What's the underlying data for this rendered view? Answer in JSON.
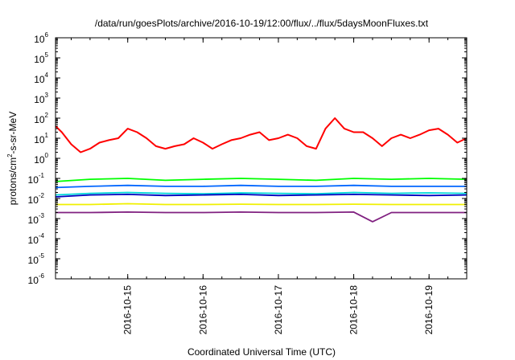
{
  "chart_data": {
    "type": "line",
    "title": "/data/run/goesPlots/archive/2016-10-19/12:00/flux/../flux/5daysMoonFluxes.txt",
    "xlabel": "Coordinated Universal Time (UTC)",
    "ylabel": {
      "base": "protons/cm",
      "sup": "2",
      "rest": "-s-sr-MeV"
    },
    "xlim": [
      "2016-10-14T01:00",
      "2016-10-19T12:00"
    ],
    "ylim": [
      1e-06,
      1000000.0
    ],
    "yscale": "log",
    "grid": false,
    "legend": "none",
    "x_ticks": [
      {
        "label": "2016-10-15",
        "value": "2016-10-15T00:00"
      },
      {
        "label": "2016-10-16",
        "value": "2016-10-16T00:00"
      },
      {
        "label": "2016-10-17",
        "value": "2016-10-17T00:00"
      },
      {
        "label": "2016-10-18",
        "value": "2016-10-18T00:00"
      },
      {
        "label": "2016-10-19",
        "value": "2016-10-19T00:00"
      }
    ],
    "y_ticks": [
      {
        "base": "10",
        "exp": "6",
        "value": 1000000.0
      },
      {
        "base": "10",
        "exp": "5",
        "value": 100000.0
      },
      {
        "base": "10",
        "exp": "4",
        "value": 10000.0
      },
      {
        "base": "10",
        "exp": "3",
        "value": 1000.0
      },
      {
        "base": "10",
        "exp": "2",
        "value": 100.0
      },
      {
        "base": "10",
        "exp": "1",
        "value": 10.0
      },
      {
        "base": "10",
        "exp": "0",
        "value": 1
      },
      {
        "base": "10",
        "exp": "-1",
        "value": 0.1
      },
      {
        "base": "10",
        "exp": "-2",
        "value": 0.01
      },
      {
        "base": "10",
        "exp": "-3",
        "value": 0.001
      },
      {
        "base": "10",
        "exp": "-4",
        "value": 0.0001
      },
      {
        "base": "10",
        "exp": "-5",
        "value": 1e-05
      },
      {
        "base": "10",
        "exp": "-6",
        "value": 1e-06
      }
    ],
    "series": [
      {
        "color": "#ff0000",
        "x": [
          "2016-10-14T01:00",
          "2016-10-14T03:00",
          "2016-10-14T06:00",
          "2016-10-14T09:00",
          "2016-10-14T12:00",
          "2016-10-14T15:00",
          "2016-10-14T18:00",
          "2016-10-14T21:00",
          "2016-10-15T00:00",
          "2016-10-15T03:00",
          "2016-10-15T06:00",
          "2016-10-15T09:00",
          "2016-10-15T12:00",
          "2016-10-15T15:00",
          "2016-10-15T18:00",
          "2016-10-15T21:00",
          "2016-10-16T00:00",
          "2016-10-16T03:00",
          "2016-10-16T06:00",
          "2016-10-16T09:00",
          "2016-10-16T12:00",
          "2016-10-16T15:00",
          "2016-10-16T18:00",
          "2016-10-16T21:00",
          "2016-10-17T00:00",
          "2016-10-17T03:00",
          "2016-10-17T06:00",
          "2016-10-17T09:00",
          "2016-10-17T12:00",
          "2016-10-17T15:00",
          "2016-10-17T18:00",
          "2016-10-17T21:00",
          "2016-10-18T00:00",
          "2016-10-18T03:00",
          "2016-10-18T06:00",
          "2016-10-18T09:00",
          "2016-10-18T12:00",
          "2016-10-18T15:00",
          "2016-10-18T18:00",
          "2016-10-18T21:00",
          "2016-10-19T00:00",
          "2016-10-19T03:00",
          "2016-10-19T06:00",
          "2016-10-19T09:00",
          "2016-10-19T12:00"
        ],
        "y": [
          40,
          20,
          5,
          2,
          3,
          6,
          8,
          10,
          30,
          20,
          10,
          4,
          3,
          4,
          5,
          10,
          6,
          3,
          5,
          8,
          10,
          15,
          20,
          8,
          10,
          15,
          10,
          4,
          3,
          30,
          100,
          30,
          20,
          20,
          10,
          4,
          10,
          15,
          10,
          15,
          25,
          30,
          15,
          6,
          10
        ]
      },
      {
        "color": "#00ff00",
        "x": [
          "2016-10-14T01:00",
          "2016-10-14T12:00",
          "2016-10-15T00:00",
          "2016-10-15T12:00",
          "2016-10-16T00:00",
          "2016-10-16T12:00",
          "2016-10-17T00:00",
          "2016-10-17T12:00",
          "2016-10-18T00:00",
          "2016-10-18T12:00",
          "2016-10-19T00:00",
          "2016-10-19T12:00"
        ],
        "y": [
          0.07,
          0.09,
          0.1,
          0.08,
          0.09,
          0.1,
          0.09,
          0.08,
          0.1,
          0.09,
          0.1,
          0.09
        ]
      },
      {
        "color": "#0066ff",
        "x": [
          "2016-10-14T01:00",
          "2016-10-14T12:00",
          "2016-10-15T00:00",
          "2016-10-15T12:00",
          "2016-10-16T00:00",
          "2016-10-16T12:00",
          "2016-10-17T00:00",
          "2016-10-17T12:00",
          "2016-10-18T00:00",
          "2016-10-18T12:00",
          "2016-10-19T00:00",
          "2016-10-19T12:00"
        ],
        "y": [
          0.035,
          0.04,
          0.045,
          0.04,
          0.04,
          0.045,
          0.04,
          0.04,
          0.045,
          0.04,
          0.04,
          0.04
        ]
      },
      {
        "color": "#00d8d8",
        "x": [
          "2016-10-14T01:00",
          "2016-10-14T12:00",
          "2016-10-15T00:00",
          "2016-10-15T12:00",
          "2016-10-16T00:00",
          "2016-10-16T12:00",
          "2016-10-17T00:00",
          "2016-10-17T12:00",
          "2016-10-18T00:00",
          "2016-10-18T12:00",
          "2016-10-19T00:00",
          "2016-10-19T12:00"
        ],
        "y": [
          0.015,
          0.018,
          0.02,
          0.018,
          0.017,
          0.019,
          0.018,
          0.017,
          0.02,
          0.018,
          0.019,
          0.018
        ]
      },
      {
        "color": "#0000c0",
        "x": [
          "2016-10-14T01:00",
          "2016-10-14T12:00",
          "2016-10-15T00:00",
          "2016-10-15T12:00",
          "2016-10-16T00:00",
          "2016-10-16T12:00",
          "2016-10-17T00:00",
          "2016-10-17T12:00",
          "2016-10-18T00:00",
          "2016-10-18T12:00",
          "2016-10-19T00:00",
          "2016-10-19T12:00"
        ],
        "y": [
          0.012,
          0.015,
          0.016,
          0.014,
          0.015,
          0.016,
          0.014,
          0.015,
          0.016,
          0.015,
          0.014,
          0.015
        ]
      },
      {
        "color": "#f0f000",
        "x": [
          "2016-10-14T01:00",
          "2016-10-14T12:00",
          "2016-10-15T00:00",
          "2016-10-15T12:00",
          "2016-10-16T00:00",
          "2016-10-16T12:00",
          "2016-10-17T00:00",
          "2016-10-17T12:00",
          "2016-10-18T00:00",
          "2016-10-18T12:00",
          "2016-10-19T00:00",
          "2016-10-19T12:00"
        ],
        "y": [
          0.005,
          0.005,
          0.0055,
          0.005,
          0.005,
          0.0052,
          0.005,
          0.005,
          0.0052,
          0.005,
          0.005,
          0.005
        ]
      },
      {
        "color": "#802080",
        "x": [
          "2016-10-14T01:00",
          "2016-10-14T12:00",
          "2016-10-15T00:00",
          "2016-10-15T12:00",
          "2016-10-16T00:00",
          "2016-10-16T12:00",
          "2016-10-17T00:00",
          "2016-10-17T12:00",
          "2016-10-18T00:00",
          "2016-10-18T06:00",
          "2016-10-18T12:00",
          "2016-10-19T00:00",
          "2016-10-19T12:00"
        ],
        "y": [
          0.002,
          0.002,
          0.0021,
          0.002,
          0.002,
          0.0021,
          0.002,
          0.002,
          0.0021,
          0.0007,
          0.002,
          0.002,
          0.002
        ]
      }
    ]
  }
}
